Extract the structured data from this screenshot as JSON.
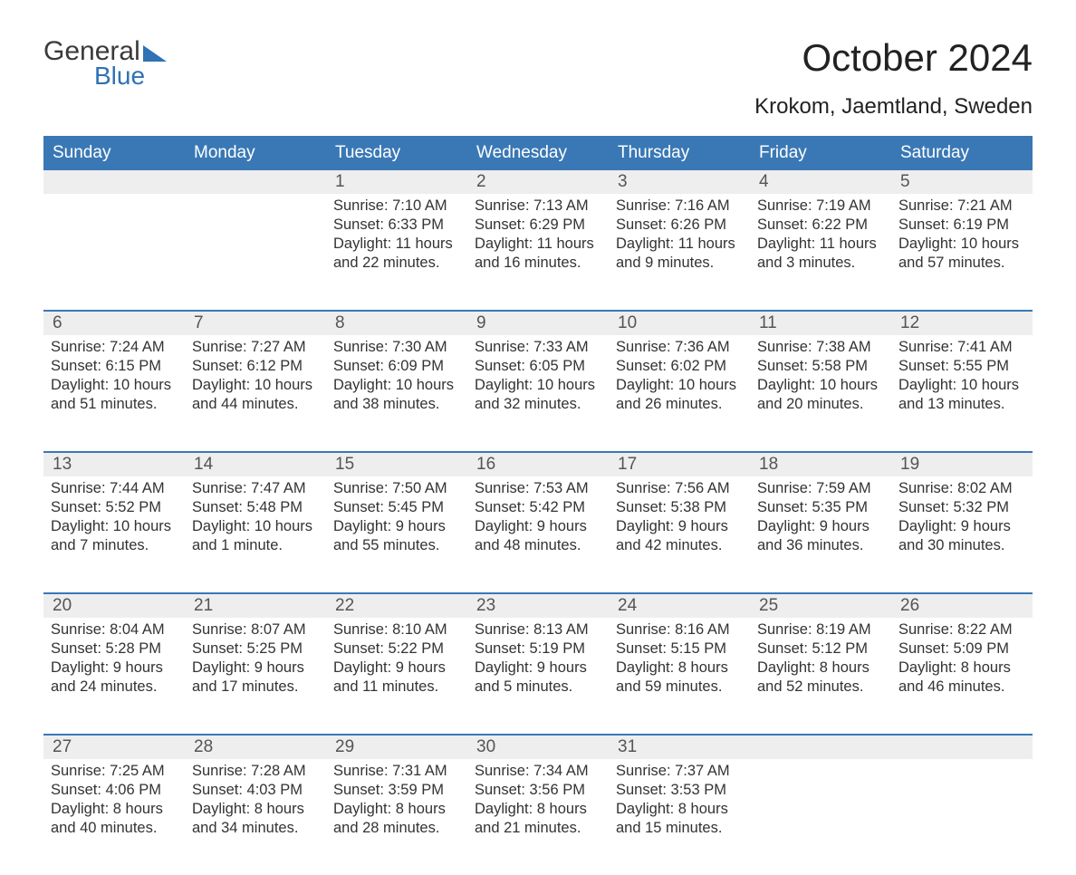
{
  "brand": {
    "word1": "General",
    "word2": "Blue",
    "accent_color": "#2f72b5"
  },
  "title": "October 2024",
  "location": "Krokom, Jaemtland, Sweden",
  "colors": {
    "header_bg": "#3a78b5",
    "daynum_bg": "#eeeeee",
    "rule": "#3a78b5",
    "text": "#333333"
  },
  "day_labels": [
    "Sunday",
    "Monday",
    "Tuesday",
    "Wednesday",
    "Thursday",
    "Friday",
    "Saturday"
  ],
  "weeks": [
    [
      null,
      null,
      {
        "n": "1",
        "sr": "7:10 AM",
        "ss": "6:33 PM",
        "dl": "11 hours and 22 minutes."
      },
      {
        "n": "2",
        "sr": "7:13 AM",
        "ss": "6:29 PM",
        "dl": "11 hours and 16 minutes."
      },
      {
        "n": "3",
        "sr": "7:16 AM",
        "ss": "6:26 PM",
        "dl": "11 hours and 9 minutes."
      },
      {
        "n": "4",
        "sr": "7:19 AM",
        "ss": "6:22 PM",
        "dl": "11 hours and 3 minutes."
      },
      {
        "n": "5",
        "sr": "7:21 AM",
        "ss": "6:19 PM",
        "dl": "10 hours and 57 minutes."
      }
    ],
    [
      {
        "n": "6",
        "sr": "7:24 AM",
        "ss": "6:15 PM",
        "dl": "10 hours and 51 minutes."
      },
      {
        "n": "7",
        "sr": "7:27 AM",
        "ss": "6:12 PM",
        "dl": "10 hours and 44 minutes."
      },
      {
        "n": "8",
        "sr": "7:30 AM",
        "ss": "6:09 PM",
        "dl": "10 hours and 38 minutes."
      },
      {
        "n": "9",
        "sr": "7:33 AM",
        "ss": "6:05 PM",
        "dl": "10 hours and 32 minutes."
      },
      {
        "n": "10",
        "sr": "7:36 AM",
        "ss": "6:02 PM",
        "dl": "10 hours and 26 minutes."
      },
      {
        "n": "11",
        "sr": "7:38 AM",
        "ss": "5:58 PM",
        "dl": "10 hours and 20 minutes."
      },
      {
        "n": "12",
        "sr": "7:41 AM",
        "ss": "5:55 PM",
        "dl": "10 hours and 13 minutes."
      }
    ],
    [
      {
        "n": "13",
        "sr": "7:44 AM",
        "ss": "5:52 PM",
        "dl": "10 hours and 7 minutes."
      },
      {
        "n": "14",
        "sr": "7:47 AM",
        "ss": "5:48 PM",
        "dl": "10 hours and 1 minute."
      },
      {
        "n": "15",
        "sr": "7:50 AM",
        "ss": "5:45 PM",
        "dl": "9 hours and 55 minutes."
      },
      {
        "n": "16",
        "sr": "7:53 AM",
        "ss": "5:42 PM",
        "dl": "9 hours and 48 minutes."
      },
      {
        "n": "17",
        "sr": "7:56 AM",
        "ss": "5:38 PM",
        "dl": "9 hours and 42 minutes."
      },
      {
        "n": "18",
        "sr": "7:59 AM",
        "ss": "5:35 PM",
        "dl": "9 hours and 36 minutes."
      },
      {
        "n": "19",
        "sr": "8:02 AM",
        "ss": "5:32 PM",
        "dl": "9 hours and 30 minutes."
      }
    ],
    [
      {
        "n": "20",
        "sr": "8:04 AM",
        "ss": "5:28 PM",
        "dl": "9 hours and 24 minutes."
      },
      {
        "n": "21",
        "sr": "8:07 AM",
        "ss": "5:25 PM",
        "dl": "9 hours and 17 minutes."
      },
      {
        "n": "22",
        "sr": "8:10 AM",
        "ss": "5:22 PM",
        "dl": "9 hours and 11 minutes."
      },
      {
        "n": "23",
        "sr": "8:13 AM",
        "ss": "5:19 PM",
        "dl": "9 hours and 5 minutes."
      },
      {
        "n": "24",
        "sr": "8:16 AM",
        "ss": "5:15 PM",
        "dl": "8 hours and 59 minutes."
      },
      {
        "n": "25",
        "sr": "8:19 AM",
        "ss": "5:12 PM",
        "dl": "8 hours and 52 minutes."
      },
      {
        "n": "26",
        "sr": "8:22 AM",
        "ss": "5:09 PM",
        "dl": "8 hours and 46 minutes."
      }
    ],
    [
      {
        "n": "27",
        "sr": "7:25 AM",
        "ss": "4:06 PM",
        "dl": "8 hours and 40 minutes."
      },
      {
        "n": "28",
        "sr": "7:28 AM",
        "ss": "4:03 PM",
        "dl": "8 hours and 34 minutes."
      },
      {
        "n": "29",
        "sr": "7:31 AM",
        "ss": "3:59 PM",
        "dl": "8 hours and 28 minutes."
      },
      {
        "n": "30",
        "sr": "7:34 AM",
        "ss": "3:56 PM",
        "dl": "8 hours and 21 minutes."
      },
      {
        "n": "31",
        "sr": "7:37 AM",
        "ss": "3:53 PM",
        "dl": "8 hours and 15 minutes."
      },
      null,
      null
    ]
  ],
  "labels": {
    "sunrise": "Sunrise: ",
    "sunset": "Sunset: ",
    "daylight": "Daylight: "
  }
}
